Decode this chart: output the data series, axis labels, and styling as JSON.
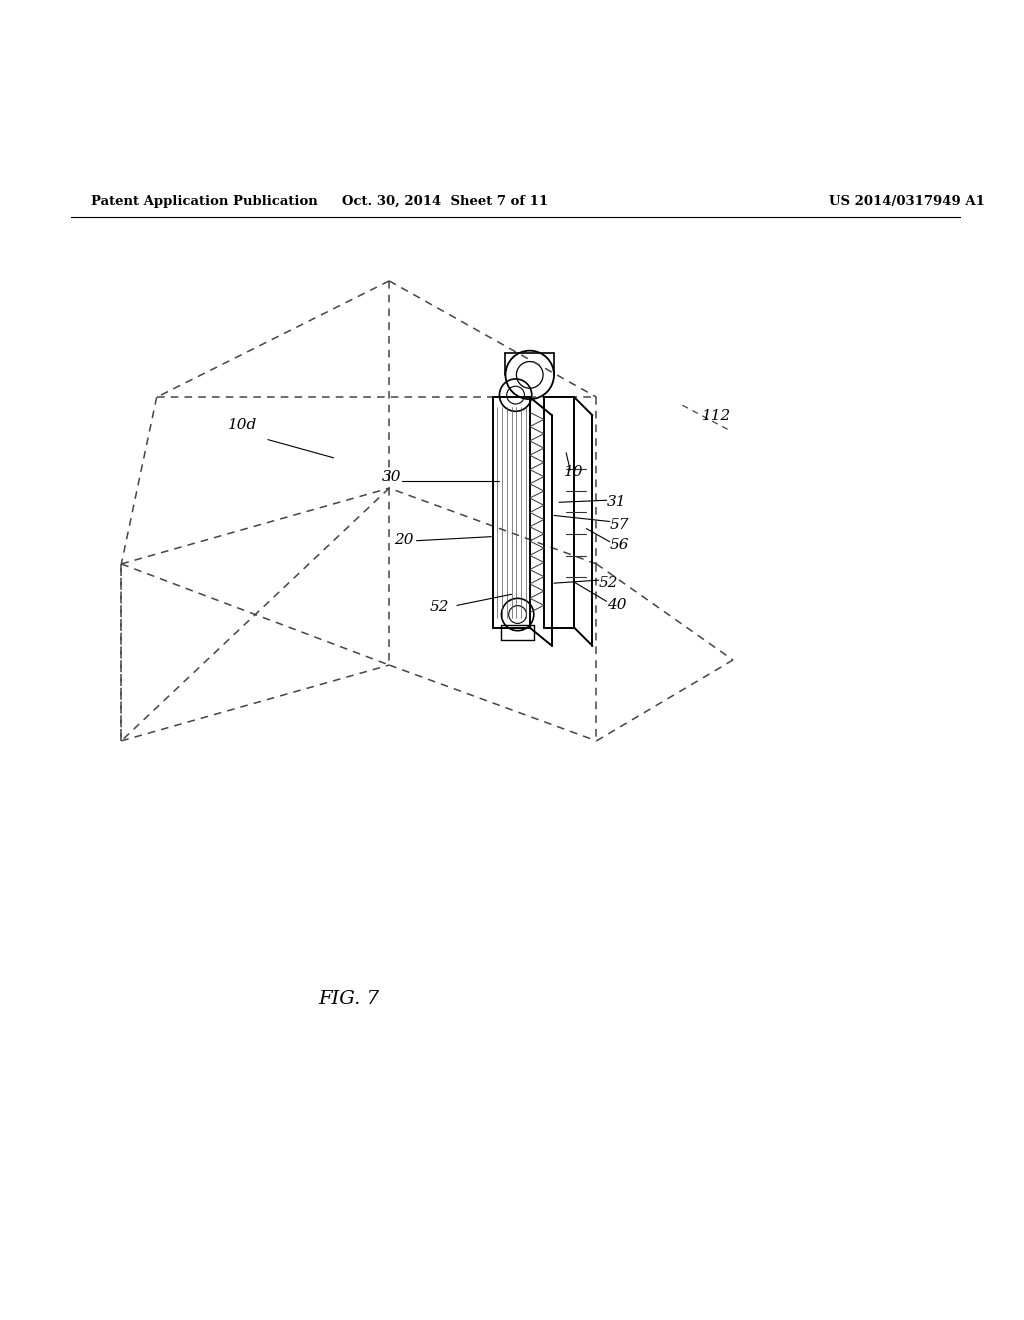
{
  "bg_color": "#ffffff",
  "line_color": "#000000",
  "dashed_color": "#444444",
  "header_left": "Patent Application Publication",
  "header_mid": "Oct. 30, 2014  Sheet 7 of 11",
  "header_right": "US 2014/0317949 A1",
  "fig_label": "FIG. 7",
  "dstyle": [
    5,
    4
  ]
}
